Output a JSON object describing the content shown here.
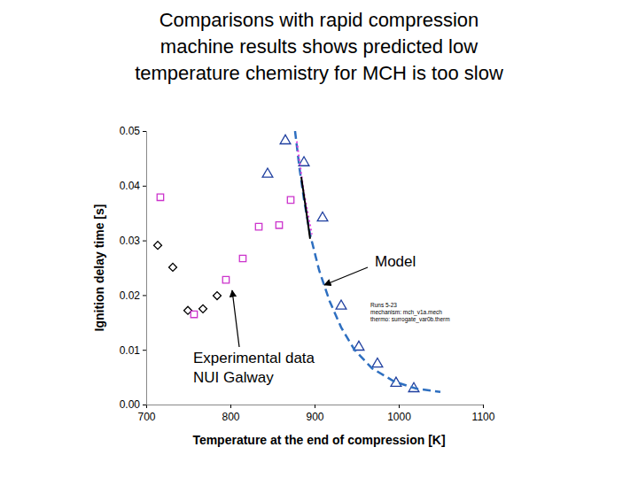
{
  "chart_data": {
    "type": "scatter",
    "title": [
      "Comparisons with rapid compression",
      "machine results shows predicted low",
      "temperature chemistry for MCH is too slow"
    ],
    "x_label": "Temperature at the end of compression [K]",
    "y_label": "Ignition delay time [s]",
    "xlim": [
      700,
      1100
    ],
    "xticks": [
      700,
      800,
      900,
      1000,
      1100
    ],
    "ylim": [
      0,
      0.05
    ],
    "yticks": [
      {
        "value": 0,
        "label": "0.00"
      },
      0.01,
      0.02,
      0.03,
      0.04,
      0.05
    ],
    "grid": false,
    "series": [
      {
        "type": "scatter",
        "marker": "diamond",
        "color": "#000000",
        "x": [
          713.7,
          731.6,
          749.5,
          767.4,
          784.2
        ],
        "values": [
          0.0291,
          0.0251,
          0.0172,
          0.0175,
          0.0199
        ]
      },
      {
        "type": "scatter",
        "marker": "square",
        "color": "#cc33cc",
        "x": [
          716.8,
          756.8,
          794.7,
          814.7,
          833.7,
          857.9,
          871.6
        ],
        "values": [
          0.0379,
          0.0165,
          0.0228,
          0.0267,
          0.0325,
          0.0328,
          0.0374
        ]
      },
      {
        "type": "scatter",
        "marker": "triangle",
        "color": "#1f3f9f",
        "x": [
          865.3,
          887.4,
          844.2,
          909.5,
          931.6,
          952.6,
          974.7,
          996.8,
          1017.9
        ],
        "values": [
          0.0482,
          0.0442,
          0.0421,
          0.0341,
          0.018,
          0.0105,
          0.0074,
          0.0039,
          0.0029
        ]
      },
      {
        "type": "line",
        "line_style": "dashed",
        "color": "#2e6fc0",
        "x": [
          876.8,
          882.1,
          887.4,
          894.7,
          905.3,
          917.9,
          931.6,
          947.4,
          968.4,
          994.7,
          1021.0,
          1049.5
        ],
        "values": [
          0.05,
          0.0432,
          0.0375,
          0.0311,
          0.0246,
          0.0189,
          0.0141,
          0.01,
          0.0066,
          0.0042,
          0.0029,
          0.0023
        ]
      },
      {
        "type": "line",
        "line_style": "dotted",
        "color": "#e040e0",
        "x": [
          878.9,
          887.0,
          896.8
        ],
        "values": [
          0.0481,
          0.039,
          0.0311
        ]
      },
      {
        "type": "line",
        "line_style": "solid",
        "color": "#000000",
        "x": [
          884.2,
          889.5,
          894.7
        ],
        "values": [
          0.0416,
          0.036,
          0.0303
        ]
      }
    ],
    "annotations": [
      {
        "text": [
          "Model"
        ]
      },
      {
        "text": [
          "Experimental data",
          "NUI Galway"
        ]
      },
      {
        "text": [
          "Runs 5-23",
          "mechanism: mch_v1a.mech",
          "thermo: surrogate_var0b.therm"
        ]
      }
    ]
  }
}
